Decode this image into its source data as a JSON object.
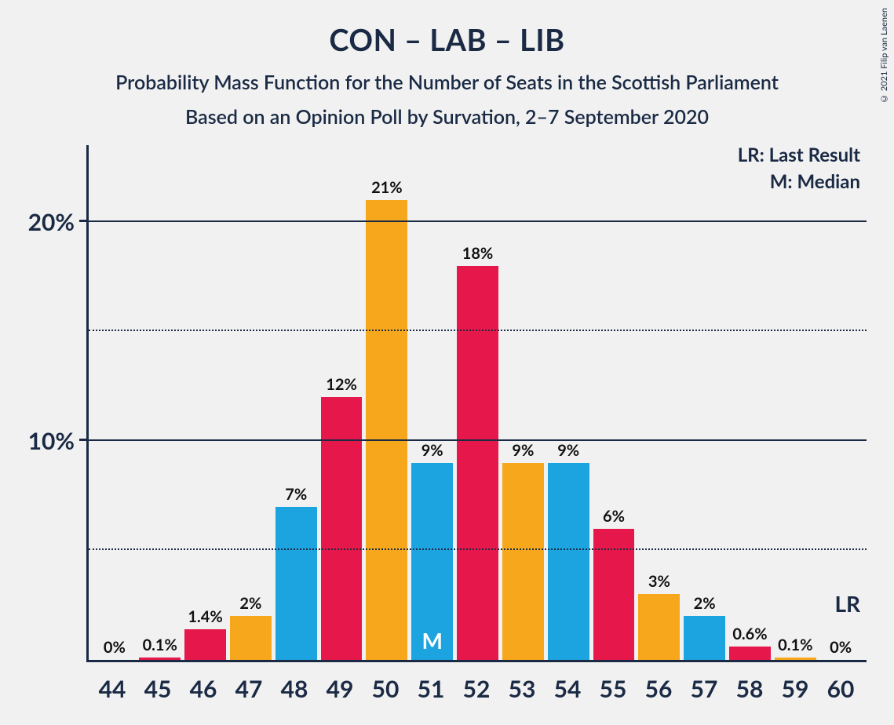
{
  "title": "CON – LAB – LIB",
  "subtitle1": "Probability Mass Function for the Number of Seats in the Scottish Parliament",
  "subtitle2": "Based on an Opinion Poll by Survation, 2–7 September 2020",
  "copyright": "© 2021 Filip van Laenen",
  "legend_lr": "LR: Last Result",
  "legend_m": "M: Median",
  "lr_marker": "LR",
  "median_marker": "M",
  "chart": {
    "type": "bar",
    "x_categories": [
      "44",
      "45",
      "46",
      "47",
      "48",
      "49",
      "50",
      "51",
      "52",
      "53",
      "54",
      "55",
      "56",
      "57",
      "58",
      "59",
      "60"
    ],
    "values_pct": [
      0,
      0.1,
      1.4,
      2,
      7,
      12,
      21,
      9,
      18,
      9,
      9,
      6,
      3,
      2,
      0.6,
      0.1,
      0
    ],
    "value_labels": [
      "0%",
      "0.1%",
      "1.4%",
      "2%",
      "7%",
      "12%",
      "21%",
      "9%",
      "18%",
      "9%",
      "9%",
      "6%",
      "3%",
      "2%",
      "0.6%",
      "0.1%",
      "0%"
    ],
    "bar_colors": [
      "#1ca4e0",
      "#e6174a",
      "#e6174a",
      "#f6a71c",
      "#1ca4e0",
      "#e6174a",
      "#f6a71c",
      "#1ca4e0",
      "#e6174a",
      "#f6a71c",
      "#1ca4e0",
      "#e6174a",
      "#f6a71c",
      "#1ca4e0",
      "#e6174a",
      "#f6a71c",
      "#1ca4e0"
    ],
    "median_index": 7,
    "lr_index": 16,
    "y_max_pct": 23.5,
    "y_ticks": [
      {
        "pct": 5,
        "label": null,
        "style": "dotted"
      },
      {
        "pct": 10,
        "label": "10%",
        "style": "solid"
      },
      {
        "pct": 15,
        "label": null,
        "style": "dotted"
      },
      {
        "pct": 20,
        "label": "20%",
        "style": "solid"
      }
    ],
    "bar_label_fontsize": 20,
    "title_fontsize": 38,
    "subtitle_fontsize": 25,
    "axis_fontsize": 30,
    "background_color": "#f1f1f1",
    "axis_color": "#1a2a44",
    "text_color": "#1a2a44",
    "marker_text_color": "#ffffff"
  }
}
